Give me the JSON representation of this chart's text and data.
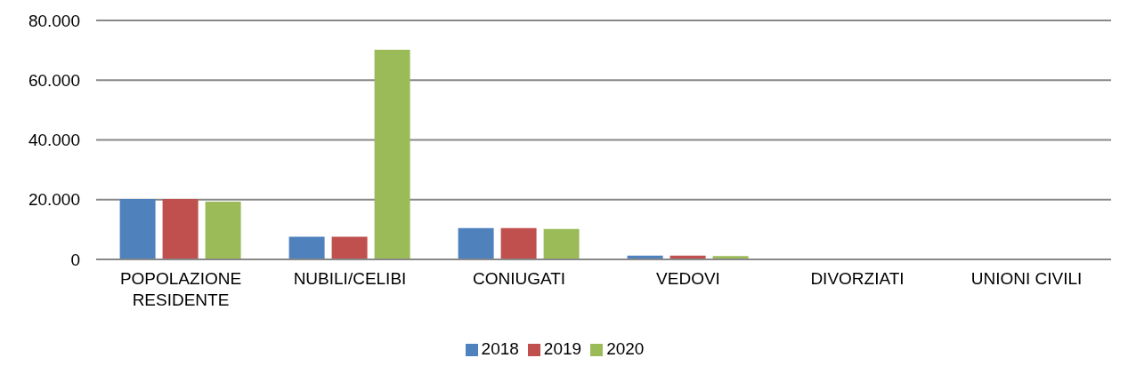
{
  "chart_data": {
    "type": "bar",
    "categories": [
      "POPOLAZIONE RESIDENTE",
      "NUBILI/CELIBI",
      "CONIUGATI",
      "VEDOVI",
      "DIVORZIATI",
      "UNIONI CIVILI"
    ],
    "series": [
      {
        "name": "2018",
        "color": "#4f81bd",
        "values": [
          20200,
          7600,
          10500,
          1300,
          200,
          0
        ]
      },
      {
        "name": "2019",
        "color": "#c0504d",
        "values": [
          20200,
          7600,
          10500,
          1300,
          200,
          0
        ]
      },
      {
        "name": "2020",
        "color": "#9bbb59",
        "values": [
          19300,
          70200,
          10200,
          1100,
          200,
          0
        ]
      }
    ],
    "ylim": [
      0,
      80000
    ],
    "yticks": [
      {
        "value": 0,
        "label": "0"
      },
      {
        "value": 20000,
        "label": "20.000"
      },
      {
        "value": 40000,
        "label": "40.000"
      },
      {
        "value": 60000,
        "label": "60.000"
      },
      {
        "value": 80000,
        "label": "80.000"
      }
    ],
    "grid": "y",
    "legend": "bottom"
  }
}
